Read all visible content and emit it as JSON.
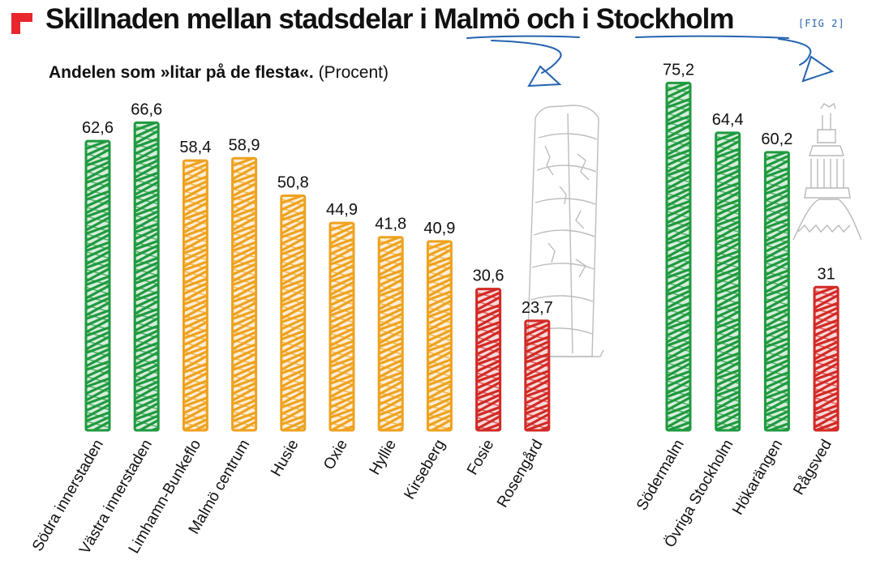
{
  "header": {
    "title": "Skillnaden mellan stadsdelar i Malmö och i Stockholm",
    "fig_tag": "[FIG 2]",
    "subtitle_main": "Andelen som »litar på de flesta«.",
    "subtitle_unit": "(Procent)"
  },
  "colors": {
    "brand_red": "#e8262d",
    "green": "#1f9a3f",
    "orange": "#eea21f",
    "red": "#d22a26",
    "pen_blue": "#2563b0",
    "sketch_gray": "#9a9a9a"
  },
  "chart_data": [
    {
      "type": "bar",
      "group": "Malmö",
      "categories": [
        "Södra innerstaden",
        "Västra innerstaden",
        "Limhamn-Bunkeflo",
        "Malmö centrum",
        "Husie",
        "Oxie",
        "Hyllie",
        "Kirseberg",
        "Fosie",
        "Rosengård"
      ],
      "values": [
        62.6,
        66.6,
        58.4,
        58.9,
        50.8,
        44.9,
        41.8,
        40.9,
        30.6,
        23.7
      ],
      "value_labels": [
        "62,6",
        "66,6",
        "58,4",
        "58,9",
        "50,8",
        "44,9",
        "41,8",
        "40,9",
        "30,6",
        "23,7"
      ],
      "color_groups": [
        "green",
        "green",
        "orange",
        "orange",
        "orange",
        "orange",
        "orange",
        "orange",
        "red",
        "red"
      ],
      "ylim": [
        0,
        80
      ],
      "grid": false,
      "legend": "none"
    },
    {
      "type": "bar",
      "group": "Stockholm",
      "categories": [
        "Södermalm",
        "Övriga Stockholm",
        "Hökarängen",
        "Rågsved"
      ],
      "values": [
        75.2,
        64.4,
        60.2,
        31
      ],
      "value_labels": [
        "75,2",
        "64,4",
        "60,2",
        "31"
      ],
      "color_groups": [
        "green",
        "green",
        "green",
        "red"
      ],
      "ylim": [
        0,
        80
      ],
      "grid": false,
      "legend": "none"
    }
  ]
}
